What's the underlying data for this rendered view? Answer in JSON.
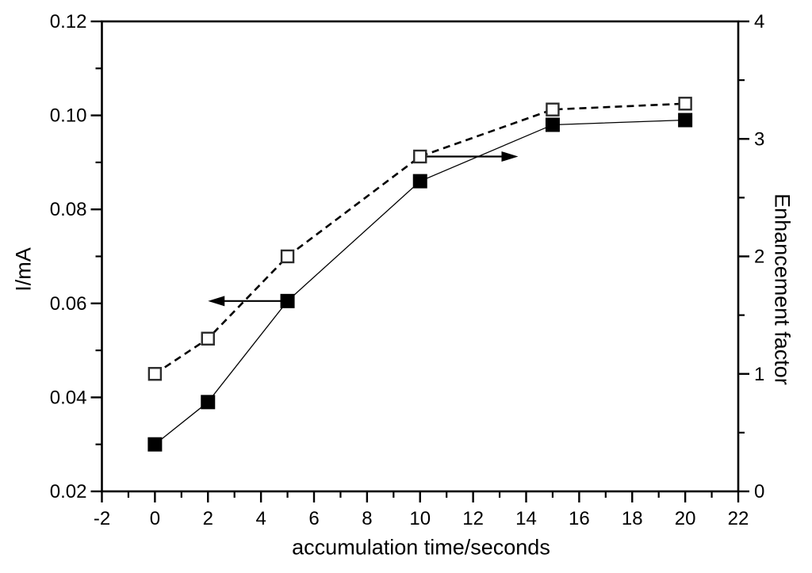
{
  "chart_data": {
    "type": "line",
    "title": "",
    "xlabel": "accumulation time/seconds",
    "ylabel_left": "I/mA",
    "ylabel_right": "Enhancement factor",
    "xlim": [
      -2,
      22
    ],
    "ylim_left": [
      0.02,
      0.12
    ],
    "ylim_right": [
      0,
      4
    ],
    "grid": "off",
    "legend": "none",
    "x_ticks": {
      "values": [
        -2,
        0,
        2,
        4,
        6,
        8,
        10,
        12,
        14,
        16,
        18,
        20,
        22
      ],
      "labels": [
        "-2",
        "0",
        "2",
        "4",
        "6",
        "8",
        "10",
        "12",
        "14",
        "16",
        "18",
        "20",
        "22"
      ]
    },
    "y_left_ticks": {
      "values": [
        0.02,
        0.04,
        0.06,
        0.08,
        0.1,
        0.12
      ],
      "labels": [
        "0.02",
        "0.04",
        "0.06",
        "0.08",
        "0.10",
        "0.12"
      ]
    },
    "y_right_ticks": {
      "values": [
        0,
        1,
        2,
        3,
        4
      ],
      "labels": [
        "0",
        "1",
        "2",
        "3",
        "4"
      ]
    },
    "x": [
      0,
      2,
      5,
      10,
      15,
      20
    ],
    "series": [
      {
        "name": "current",
        "axis": "left",
        "marker": "filled-square",
        "line": "solid",
        "values": [
          0.03,
          0.039,
          0.0605,
          0.086,
          0.098,
          0.099
        ]
      },
      {
        "name": "enhancement-factor",
        "axis": "right",
        "marker": "open-square",
        "line": "dashed",
        "values": [
          1.0,
          1.3,
          2.0,
          2.85,
          3.25,
          3.3
        ]
      }
    ],
    "annotations": [
      {
        "type": "arrow",
        "direction": "left",
        "axis": "left",
        "x_tail": 5,
        "x_tip": 2.0,
        "y": 0.0605
      },
      {
        "type": "arrow",
        "direction": "right",
        "axis": "right",
        "x_tail": 10,
        "x_tip": 13.7,
        "y": 2.85
      }
    ],
    "colors": {
      "foreground": "#000000",
      "background": "#ffffff",
      "open_marker_fill": "#ffffff"
    }
  }
}
